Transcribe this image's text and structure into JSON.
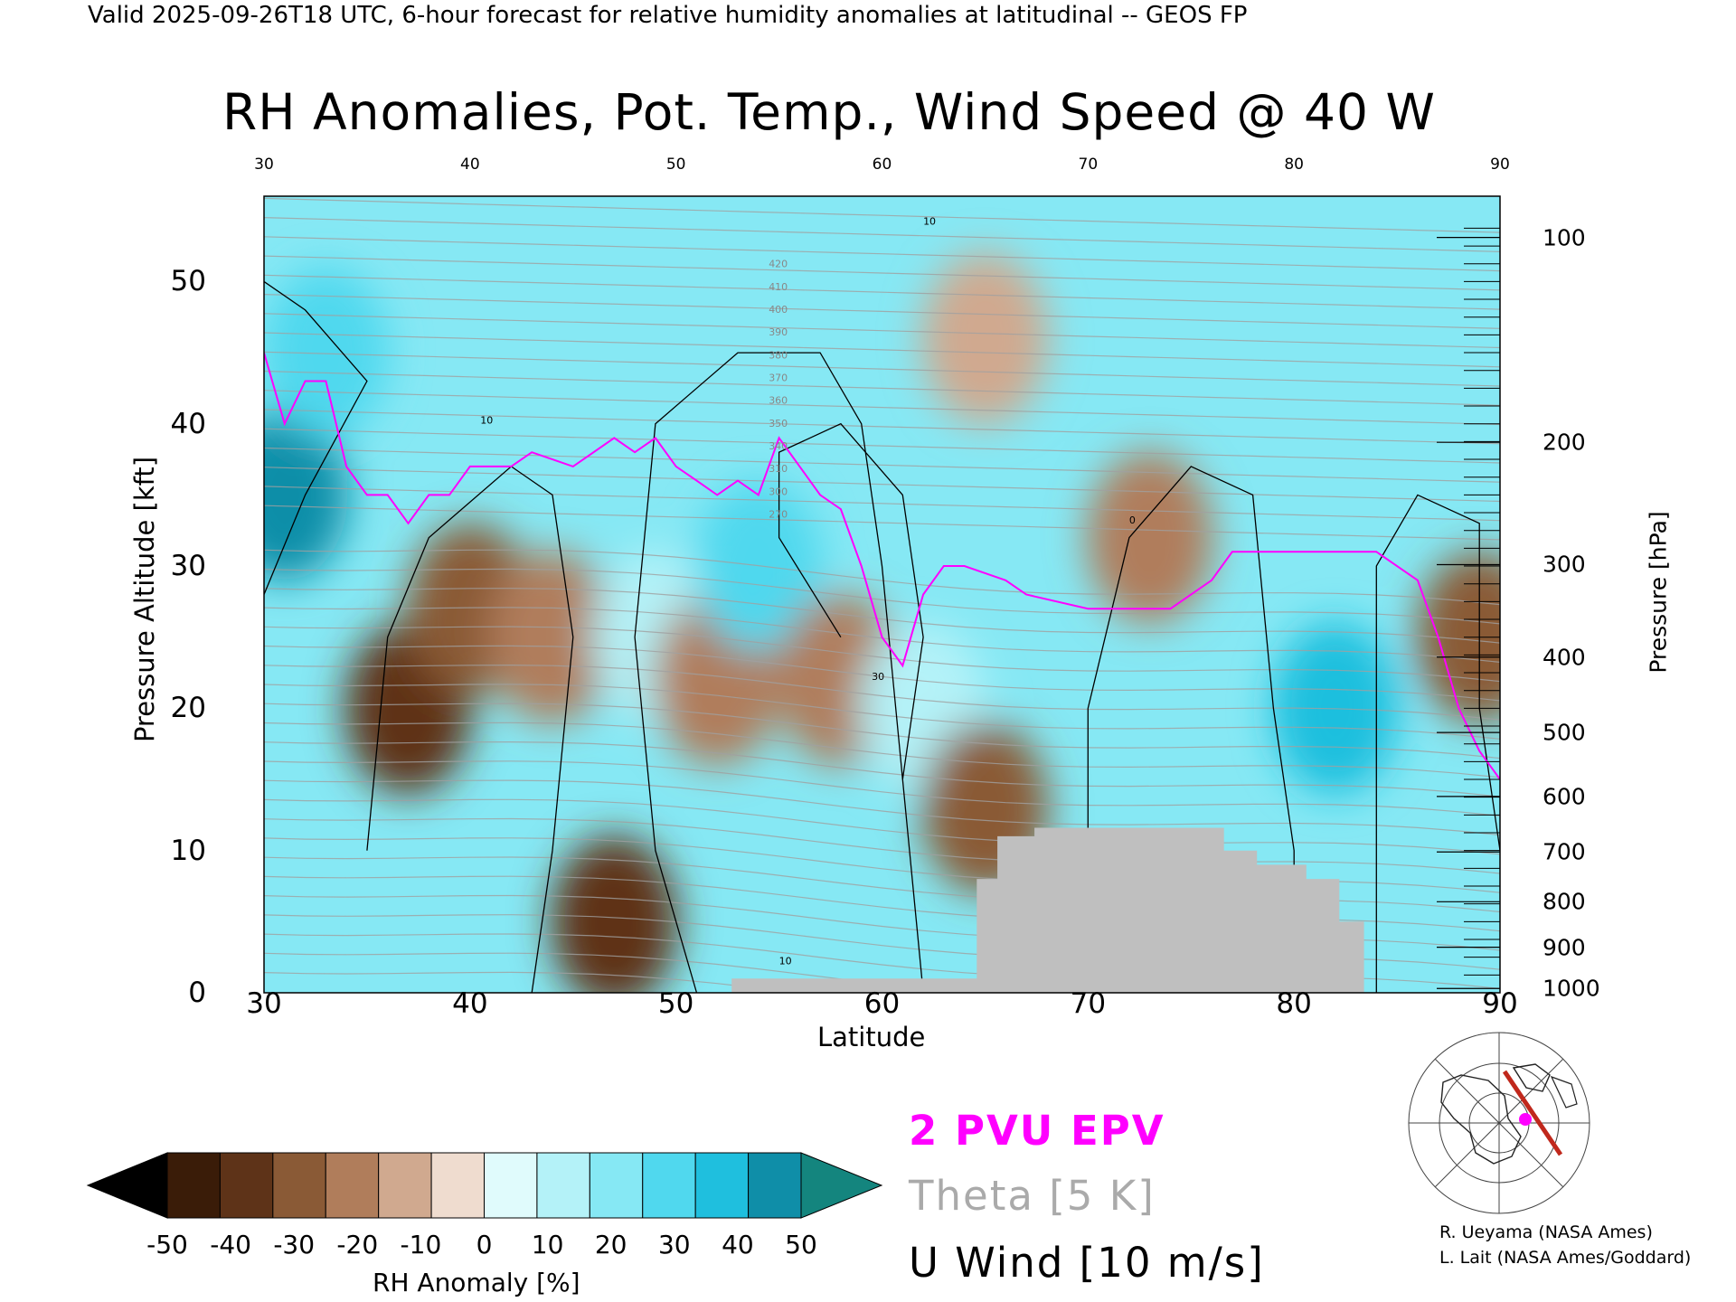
{
  "header": "Valid 2025-09-26T18 UTC, 6-hour forecast for relative humidity anomalies at latitudinal -- GEOS FP",
  "chart_data": {
    "type": "heatmap",
    "title": "RH Anomalies, Pot. Temp., Wind Speed @ 40 W",
    "xlabel": "Latitude",
    "ylabel_left": "Pressure Altitude [kft]",
    "ylabel_right": "Pressure [hPa]",
    "xlim": [
      30,
      90
    ],
    "ylim": [
      0,
      56
    ],
    "x_ticks": [
      "30",
      "40",
      "50",
      "60",
      "70",
      "80",
      "90"
    ],
    "x_ticks_top": [
      "30",
      "40",
      "50",
      "60",
      "70",
      "80",
      "90"
    ],
    "y_ticks": [
      "0",
      "10",
      "20",
      "30",
      "40",
      "50"
    ],
    "pressure_ticks": [
      {
        "label": "1000",
        "kft": 0.3
      },
      {
        "label": "900",
        "kft": 3.2
      },
      {
        "label": "800",
        "kft": 6.4
      },
      {
        "label": "700",
        "kft": 9.9
      },
      {
        "label": "600",
        "kft": 13.8
      },
      {
        "label": "500",
        "kft": 18.3
      },
      {
        "label": "400",
        "kft": 23.6
      },
      {
        "label": "300",
        "kft": 30.1
      },
      {
        "label": "200",
        "kft": 38.7
      },
      {
        "label": "100",
        "kft": 53.1
      }
    ],
    "theta_labels": [
      "420",
      "410",
      "400",
      "390",
      "380",
      "370",
      "360",
      "350",
      "340",
      "310",
      "300",
      "270"
    ],
    "u_wind_labels": [
      "10",
      "30",
      "0"
    ],
    "rh_field": [
      {
        "lat": 31,
        "kft": 35,
        "value": 50
      },
      {
        "lat": 33,
        "kft": 45,
        "value": 35
      },
      {
        "lat": 37,
        "kft": 20,
        "value": -50
      },
      {
        "lat": 40,
        "kft": 27,
        "value": -40
      },
      {
        "lat": 44,
        "kft": 25,
        "value": -25
      },
      {
        "lat": 47,
        "kft": 5,
        "value": -45
      },
      {
        "lat": 49,
        "kft": 25,
        "value": 10
      },
      {
        "lat": 52,
        "kft": 22,
        "value": -25
      },
      {
        "lat": 54,
        "kft": 30,
        "value": 30
      },
      {
        "lat": 58,
        "kft": 22,
        "value": -30
      },
      {
        "lat": 62,
        "kft": 20,
        "value": 15
      },
      {
        "lat": 65,
        "kft": 13,
        "value": -35
      },
      {
        "lat": 65,
        "kft": 46,
        "value": -20
      },
      {
        "lat": 73,
        "kft": 32,
        "value": -30
      },
      {
        "lat": 82,
        "kft": 20,
        "value": 40
      },
      {
        "lat": 89,
        "kft": 25,
        "value": -35
      }
    ],
    "pvu2_line": [
      [
        30,
        45
      ],
      [
        31,
        40
      ],
      [
        32,
        43
      ],
      [
        33,
        43
      ],
      [
        34,
        37
      ],
      [
        35,
        35
      ],
      [
        36,
        35
      ],
      [
        37,
        33
      ],
      [
        38,
        35
      ],
      [
        39,
        35
      ],
      [
        40,
        37
      ],
      [
        42,
        37
      ],
      [
        43,
        38
      ],
      [
        45,
        37
      ],
      [
        47,
        39
      ],
      [
        48,
        38
      ],
      [
        49,
        39
      ],
      [
        50,
        37
      ],
      [
        51,
        36
      ],
      [
        52,
        35
      ],
      [
        53,
        36
      ],
      [
        54,
        35
      ],
      [
        55,
        39
      ],
      [
        56,
        37
      ],
      [
        57,
        35
      ],
      [
        58,
        34
      ],
      [
        59,
        30
      ],
      [
        60,
        25
      ],
      [
        61,
        23
      ],
      [
        62,
        28
      ],
      [
        63,
        30
      ],
      [
        64,
        30
      ],
      [
        66,
        29
      ],
      [
        67,
        28
      ],
      [
        70,
        27
      ],
      [
        74,
        27
      ],
      [
        76,
        29
      ],
      [
        77,
        31
      ],
      [
        79,
        31
      ],
      [
        82,
        31
      ],
      [
        84,
        31
      ],
      [
        86,
        29
      ],
      [
        87,
        25
      ],
      [
        88,
        20
      ],
      [
        89,
        17
      ],
      [
        90,
        15
      ]
    ],
    "topography": [
      [
        52.7,
        0
      ],
      [
        52.7,
        1
      ],
      [
        64.6,
        1
      ],
      [
        64.6,
        8
      ],
      [
        65.6,
        8
      ],
      [
        65.6,
        11
      ],
      [
        67.4,
        11
      ],
      [
        67.4,
        11.6
      ],
      [
        76.6,
        11.6
      ],
      [
        76.6,
        10
      ],
      [
        78.2,
        10
      ],
      [
        78.2,
        9
      ],
      [
        80.6,
        9
      ],
      [
        80.6,
        8
      ],
      [
        82.2,
        8
      ],
      [
        82.2,
        5
      ],
      [
        83.4,
        5
      ],
      [
        83.4,
        0
      ]
    ],
    "colorbar": {
      "ticks": [
        "-50",
        "-40",
        "-30",
        "-20",
        "-10",
        "0",
        "10",
        "20",
        "30",
        "40",
        "50"
      ],
      "label": "RH Anomaly [%]",
      "colors": [
        "#000000",
        "#3a1c08",
        "#5e3318",
        "#8a5a36",
        "#b07d5b",
        "#d0a98f",
        "#efdccf",
        "#e0fbfc",
        "#b4f2f8",
        "#86e8f4",
        "#50d8ee",
        "#1fbfde",
        "#0f8ea8",
        "#14857e"
      ]
    },
    "legend": {
      "pvu": "2 PVU EPV",
      "theta": "Theta [5 K]",
      "u_wind": "U Wind [10 m/s]"
    },
    "colors": {
      "pvu_line": "#ff00ff",
      "theta_line": "#a0a0a0",
      "wind_line": "#000000",
      "topography": "#bfbfbf"
    }
  },
  "credits": [
    "R. Ueyama (NASA Ames)",
    "L. Lait (NASA Ames/Goddard)"
  ]
}
